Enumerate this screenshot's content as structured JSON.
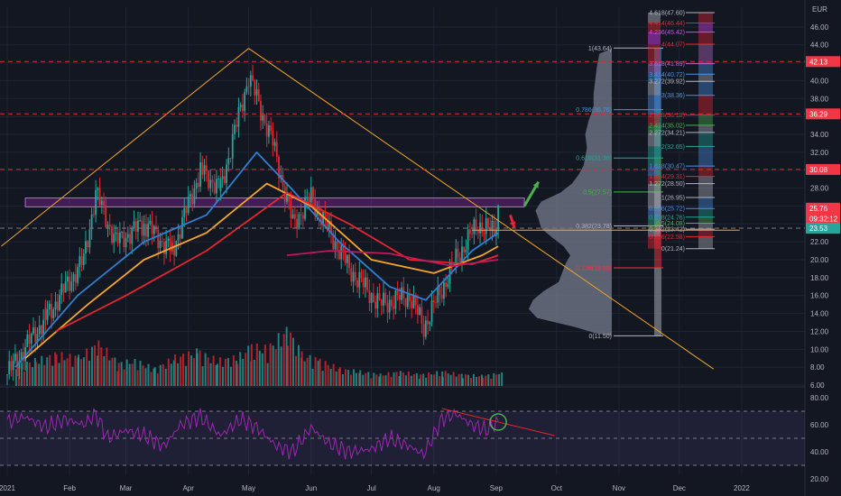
{
  "chart_data": {
    "type": "candlestick",
    "currency": "EUR",
    "x_axis": {
      "ticks": [
        "2021",
        "Feb",
        "Mar",
        "Apr",
        "May",
        "Jun",
        "Jul",
        "Aug",
        "Sep",
        "Oct",
        "Nov",
        "Dec",
        "2022"
      ]
    },
    "price_axis": {
      "ticks": [
        6,
        8,
        10,
        12,
        14,
        16,
        18,
        20,
        22,
        24,
        26,
        28,
        30,
        32,
        34,
        36,
        38,
        40,
        42,
        44,
        46
      ],
      "ylim": [
        5.5,
        48
      ]
    },
    "price_markers": [
      {
        "label": "42.13",
        "value": 42.13,
        "color": "#f23645"
      },
      {
        "label": "36.29",
        "value": 36.29,
        "color": "#f23645"
      },
      {
        "label": "30.08",
        "value": 30.08,
        "color": "#f23645"
      },
      {
        "label": "25.76",
        "value": 25.76,
        "color": "#f23645"
      },
      {
        "label": "09:32:12",
        "value": 24.6,
        "color": "#f23645"
      },
      {
        "label": "23.53",
        "value": 23.53,
        "color": "#26a69a"
      }
    ],
    "candles": {
      "key_points": [
        {
          "date": "2021-01-01",
          "value": 7.2
        },
        {
          "date": "2021-01-20",
          "value": 13.5
        },
        {
          "date": "2021-02-08",
          "value": 20.0
        },
        {
          "date": "2021-02-14",
          "value": 27.5
        },
        {
          "date": "2021-02-24",
          "value": 22.0
        },
        {
          "date": "2021-03-10",
          "value": 24.0
        },
        {
          "date": "2021-03-24",
          "value": 21.0
        },
        {
          "date": "2021-04-07",
          "value": 30.0
        },
        {
          "date": "2021-04-17",
          "value": 28.0
        },
        {
          "date": "2021-05-01",
          "value": 40.5
        },
        {
          "date": "2021-05-13",
          "value": 33.0
        },
        {
          "date": "2021-05-23",
          "value": 24.0
        },
        {
          "date": "2021-06-01",
          "value": 27.0
        },
        {
          "date": "2021-06-20",
          "value": 19.0
        },
        {
          "date": "2021-07-05",
          "value": 15.0
        },
        {
          "date": "2021-07-20",
          "value": 16.0
        },
        {
          "date": "2021-07-27",
          "value": 12.5
        },
        {
          "date": "2021-08-13",
          "value": 20.5
        },
        {
          "date": "2021-08-23",
          "value": 24.0
        },
        {
          "date": "2021-08-31",
          "value": 23.0
        },
        {
          "date": "2021-09-02",
          "value": 25.76
        }
      ]
    },
    "moving_averages": [
      {
        "color": "#2f7fd1",
        "points": [
          {
            "date": "2021-01-05",
            "value": 8
          },
          {
            "date": "2021-02-05",
            "value": 16
          },
          {
            "date": "2021-03-10",
            "value": 22
          },
          {
            "date": "2021-04-10",
            "value": 25
          },
          {
            "date": "2021-05-05",
            "value": 32
          },
          {
            "date": "2021-05-22",
            "value": 28
          },
          {
            "date": "2021-06-15",
            "value": 22
          },
          {
            "date": "2021-07-10",
            "value": 17
          },
          {
            "date": "2021-07-28",
            "value": 15.5
          },
          {
            "date": "2021-08-20",
            "value": 21
          },
          {
            "date": "2021-09-02",
            "value": 23
          }
        ]
      },
      {
        "color": "#f5a623",
        "points": [
          {
            "date": "2021-01-10",
            "value": 9
          },
          {
            "date": "2021-02-10",
            "value": 15
          },
          {
            "date": "2021-03-10",
            "value": 20
          },
          {
            "date": "2021-04-10",
            "value": 23
          },
          {
            "date": "2021-05-10",
            "value": 28.5
          },
          {
            "date": "2021-06-01",
            "value": 26
          },
          {
            "date": "2021-07-01",
            "value": 20
          },
          {
            "date": "2021-08-01",
            "value": 18.5
          },
          {
            "date": "2021-08-25",
            "value": 20.5
          },
          {
            "date": "2021-09-02",
            "value": 21.5
          }
        ]
      },
      {
        "color": "#e5262f",
        "points": [
          {
            "date": "2021-01-25",
            "value": 12
          },
          {
            "date": "2021-03-01",
            "value": 16
          },
          {
            "date": "2021-04-10",
            "value": 21
          },
          {
            "date": "2021-05-20",
            "value": 27.5
          },
          {
            "date": "2021-06-20",
            "value": 24
          },
          {
            "date": "2021-07-20",
            "value": 20
          },
          {
            "date": "2021-08-20",
            "value": 19.5
          },
          {
            "date": "2021-09-02",
            "value": 20.5
          }
        ]
      },
      {
        "color": "#c2185b",
        "points": [
          {
            "date": "2021-05-20",
            "value": 20.5
          },
          {
            "date": "2021-06-10",
            "value": 21
          },
          {
            "date": "2021-07-10",
            "value": 20.7
          },
          {
            "date": "2021-08-10",
            "value": 19.3
          },
          {
            "date": "2021-09-02",
            "value": 20
          }
        ]
      }
    ],
    "trendlines": [
      {
        "color": "#f5a623",
        "points": [
          {
            "date": "2020-12-29",
            "value": 21.5
          },
          {
            "date": "2021-05-01",
            "value": 43.6
          }
        ]
      },
      {
        "color": "#f5a623",
        "points": [
          {
            "date": "2021-05-01",
            "value": 43.6
          },
          {
            "date": "2021-12-18",
            "value": 7.8
          }
        ]
      },
      {
        "color": "#f5a623",
        "points": [
          {
            "date": "2021-08-20",
            "value": 23.3
          },
          {
            "date": "2021-12-31",
            "value": 23.3
          }
        ]
      }
    ],
    "resistance_zone": {
      "from_date": "2021-01-10",
      "to_date": "2021-09-15",
      "low": 25.9,
      "high": 26.9
    },
    "dashed_levels": [
      42.13,
      36.29,
      30.08,
      23.53
    ],
    "arrows": [
      {
        "color": "#4caf50",
        "from": {
          "date": "2021-09-15",
          "value": 26.0
        },
        "to": {
          "date": "2021-09-22",
          "value": 28.7
        }
      },
      {
        "color": "#e5262f",
        "from": {
          "date": "2021-09-08",
          "value": 25.0
        },
        "to": {
          "date": "2021-09-10",
          "value": 23.6
        }
      }
    ],
    "volume_profile": {
      "color": "#6b7080",
      "bins": [
        {
          "price": 43.0,
          "width": 0.15
        },
        {
          "price": 41.5,
          "width": 0.18
        },
        {
          "price": 40.0,
          "width": 0.2
        },
        {
          "price": 38.5,
          "width": 0.22
        },
        {
          "price": 37.0,
          "width": 0.22
        },
        {
          "price": 35.5,
          "width": 0.28
        },
        {
          "price": 34.0,
          "width": 0.32
        },
        {
          "price": 32.5,
          "width": 0.3
        },
        {
          "price": 31.5,
          "width": 0.32
        },
        {
          "price": 30.5,
          "width": 0.34
        },
        {
          "price": 29.5,
          "width": 0.4
        },
        {
          "price": 28.5,
          "width": 0.48
        },
        {
          "price": 27.5,
          "width": 0.62
        },
        {
          "price": 26.5,
          "width": 0.85
        },
        {
          "price": 25.5,
          "width": 0.92
        },
        {
          "price": 24.5,
          "width": 0.88
        },
        {
          "price": 23.5,
          "width": 0.85
        },
        {
          "price": 22.5,
          "width": 0.72
        },
        {
          "price": 21.5,
          "width": 0.58
        },
        {
          "price": 20.5,
          "width": 0.5
        },
        {
          "price": 19.5,
          "width": 0.56
        },
        {
          "price": 18.5,
          "width": 0.6
        },
        {
          "price": 17.5,
          "width": 0.64
        },
        {
          "price": 16.5,
          "width": 0.82
        },
        {
          "price": 15.5,
          "width": 0.95
        },
        {
          "price": 14.5,
          "width": 1.0
        },
        {
          "price": 13.5,
          "width": 0.9
        },
        {
          "price": 12.5,
          "width": 0.45
        },
        {
          "price": 11.8,
          "width": 0.2
        }
      ]
    },
    "fib_retracement_left": [
      {
        "label": "1(43.64)",
        "value": 43.64,
        "color": "#b2b5be"
      },
      {
        "label": "0.786(36.76)",
        "value": 36.76,
        "color": "#4a90e2"
      },
      {
        "label": "0.618(31.36)",
        "value": 31.36,
        "color": "#26a69a"
      },
      {
        "label": "0.5(27.57)",
        "value": 27.57,
        "color": "#4caf50"
      },
      {
        "label": "0.382(23.78)",
        "value": 23.78,
        "color": "#b2b5be"
      },
      {
        "label": "0.236(19.09)",
        "value": 19.09,
        "color": "#f23645"
      },
      {
        "label": "0(11.50)",
        "value": 11.5,
        "color": "#b2b5be"
      }
    ],
    "fib_extension_right": [
      {
        "label": "4.618(47.60)",
        "value": 47.6,
        "color": "#b2b5be"
      },
      {
        "label": "4.414(46.44)",
        "value": 46.44,
        "color": "#e5262f"
      },
      {
        "label": "4.236(45.42)",
        "value": 45.42,
        "color": "#e040fb"
      },
      {
        "label": "4(44.07)",
        "value": 44.07,
        "color": "#e5262f"
      },
      {
        "label": "3.618(41.89)",
        "value": 41.89,
        "color": "#ba68c8"
      },
      {
        "label": "3.414(40.72)",
        "value": 40.72,
        "color": "#4a90e2"
      },
      {
        "label": "3.272(39.92)",
        "value": 39.92,
        "color": "#b2b5be"
      },
      {
        "label": "3(38.36)",
        "value": 38.36,
        "color": "#4a90e2"
      },
      {
        "label": "2.618(36.18)",
        "value": 36.18,
        "color": "#e5262f"
      },
      {
        "label": "2.414(35.02)",
        "value": 35.02,
        "color": "#4caf50"
      },
      {
        "label": "2.272(34.21)",
        "value": 34.21,
        "color": "#b2b5be"
      },
      {
        "label": "2(32.65)",
        "value": 32.65,
        "color": "#26a69a"
      },
      {
        "label": "1.618(30.47)",
        "value": 30.47,
        "color": "#4a90e2"
      },
      {
        "label": "1.414(29.31)",
        "value": 29.31,
        "color": "#e5262f"
      },
      {
        "label": "1.272(28.50)",
        "value": 28.5,
        "color": "#b2b5be"
      },
      {
        "label": "1(26.95)",
        "value": 26.95,
        "color": "#b2b5be"
      },
      {
        "label": "0.786(25.72)",
        "value": 25.72,
        "color": "#4a90e2"
      },
      {
        "label": "0.618(24.76)",
        "value": 24.76,
        "color": "#26a69a"
      },
      {
        "label": "0.5(24.08)",
        "value": 24.08,
        "color": "#4caf50"
      },
      {
        "label": "0.382(23.42)",
        "value": 23.42,
        "color": "#b2b5be"
      },
      {
        "label": "0.236(22.58)",
        "value": 22.58,
        "color": "#e5262f"
      },
      {
        "label": "0(21.24)",
        "value": 21.24,
        "color": "#b2b5be"
      }
    ],
    "rsi": {
      "ticks": [
        20,
        40,
        60,
        80
      ],
      "ylim": [
        10,
        90
      ],
      "band": [
        30,
        70
      ],
      "midline": 50,
      "color": "#9c27b0",
      "points": [
        {
          "date": "2021-01-01",
          "value": 62
        },
        {
          "date": "2021-01-10",
          "value": 66
        },
        {
          "date": "2021-01-20",
          "value": 58
        },
        {
          "date": "2021-01-30",
          "value": 64
        },
        {
          "date": "2021-02-08",
          "value": 60
        },
        {
          "date": "2021-02-14",
          "value": 68
        },
        {
          "date": "2021-02-20",
          "value": 50
        },
        {
          "date": "2021-03-01",
          "value": 56
        },
        {
          "date": "2021-03-10",
          "value": 52
        },
        {
          "date": "2021-03-20",
          "value": 44
        },
        {
          "date": "2021-03-28",
          "value": 60
        },
        {
          "date": "2021-04-07",
          "value": 66
        },
        {
          "date": "2021-04-17",
          "value": 52
        },
        {
          "date": "2021-04-27",
          "value": 64
        },
        {
          "date": "2021-05-05",
          "value": 58
        },
        {
          "date": "2021-05-15",
          "value": 44
        },
        {
          "date": "2021-05-23",
          "value": 40
        },
        {
          "date": "2021-06-01",
          "value": 58
        },
        {
          "date": "2021-06-10",
          "value": 46
        },
        {
          "date": "2021-06-20",
          "value": 40
        },
        {
          "date": "2021-07-01",
          "value": 42
        },
        {
          "date": "2021-07-10",
          "value": 50
        },
        {
          "date": "2021-07-20",
          "value": 44
        },
        {
          "date": "2021-07-27",
          "value": 38
        },
        {
          "date": "2021-08-05",
          "value": 64
        },
        {
          "date": "2021-08-12",
          "value": 68
        },
        {
          "date": "2021-08-20",
          "value": 60
        },
        {
          "date": "2021-08-27",
          "value": 56
        },
        {
          "date": "2021-09-02",
          "value": 63
        }
      ],
      "divergence_line": {
        "color": "#e5262f",
        "points": [
          {
            "date": "2021-08-05",
            "value": 72
          },
          {
            "date": "2021-09-30",
            "value": 52
          }
        ]
      },
      "highlight_circle": {
        "date": "2021-09-02",
        "value": 62
      }
    },
    "volume": {
      "color_up": "#26a69a",
      "color_down": "#e5262f",
      "bars": [
        {
          "date": "2021-01-05",
          "value": 0.35
        },
        {
          "date": "2021-01-15",
          "value": 0.45
        },
        {
          "date": "2021-01-25",
          "value": 0.55
        },
        {
          "date": "2021-02-05",
          "value": 0.5
        },
        {
          "date": "2021-02-15",
          "value": 0.75
        },
        {
          "date": "2021-02-25",
          "value": 0.4
        },
        {
          "date": "2021-03-05",
          "value": 0.45
        },
        {
          "date": "2021-03-15",
          "value": 0.3
        },
        {
          "date": "2021-03-25",
          "value": 0.5
        },
        {
          "date": "2021-04-05",
          "value": 0.6
        },
        {
          "date": "2021-04-15",
          "value": 0.45
        },
        {
          "date": "2021-04-25",
          "value": 0.5
        },
        {
          "date": "2021-05-02",
          "value": 0.7
        },
        {
          "date": "2021-05-10",
          "value": 0.65
        },
        {
          "date": "2021-05-20",
          "value": 1.0
        },
        {
          "date": "2021-05-27",
          "value": 0.55
        },
        {
          "date": "2021-06-05",
          "value": 0.45
        },
        {
          "date": "2021-06-15",
          "value": 0.3
        },
        {
          "date": "2021-06-25",
          "value": 0.25
        },
        {
          "date": "2021-07-05",
          "value": 0.2
        },
        {
          "date": "2021-07-15",
          "value": 0.25
        },
        {
          "date": "2021-07-25",
          "value": 0.2
        },
        {
          "date": "2021-08-05",
          "value": 0.25
        },
        {
          "date": "2021-08-15",
          "value": 0.2
        },
        {
          "date": "2021-08-25",
          "value": 0.18
        },
        {
          "date": "2021-09-02",
          "value": 0.22
        }
      ]
    }
  }
}
